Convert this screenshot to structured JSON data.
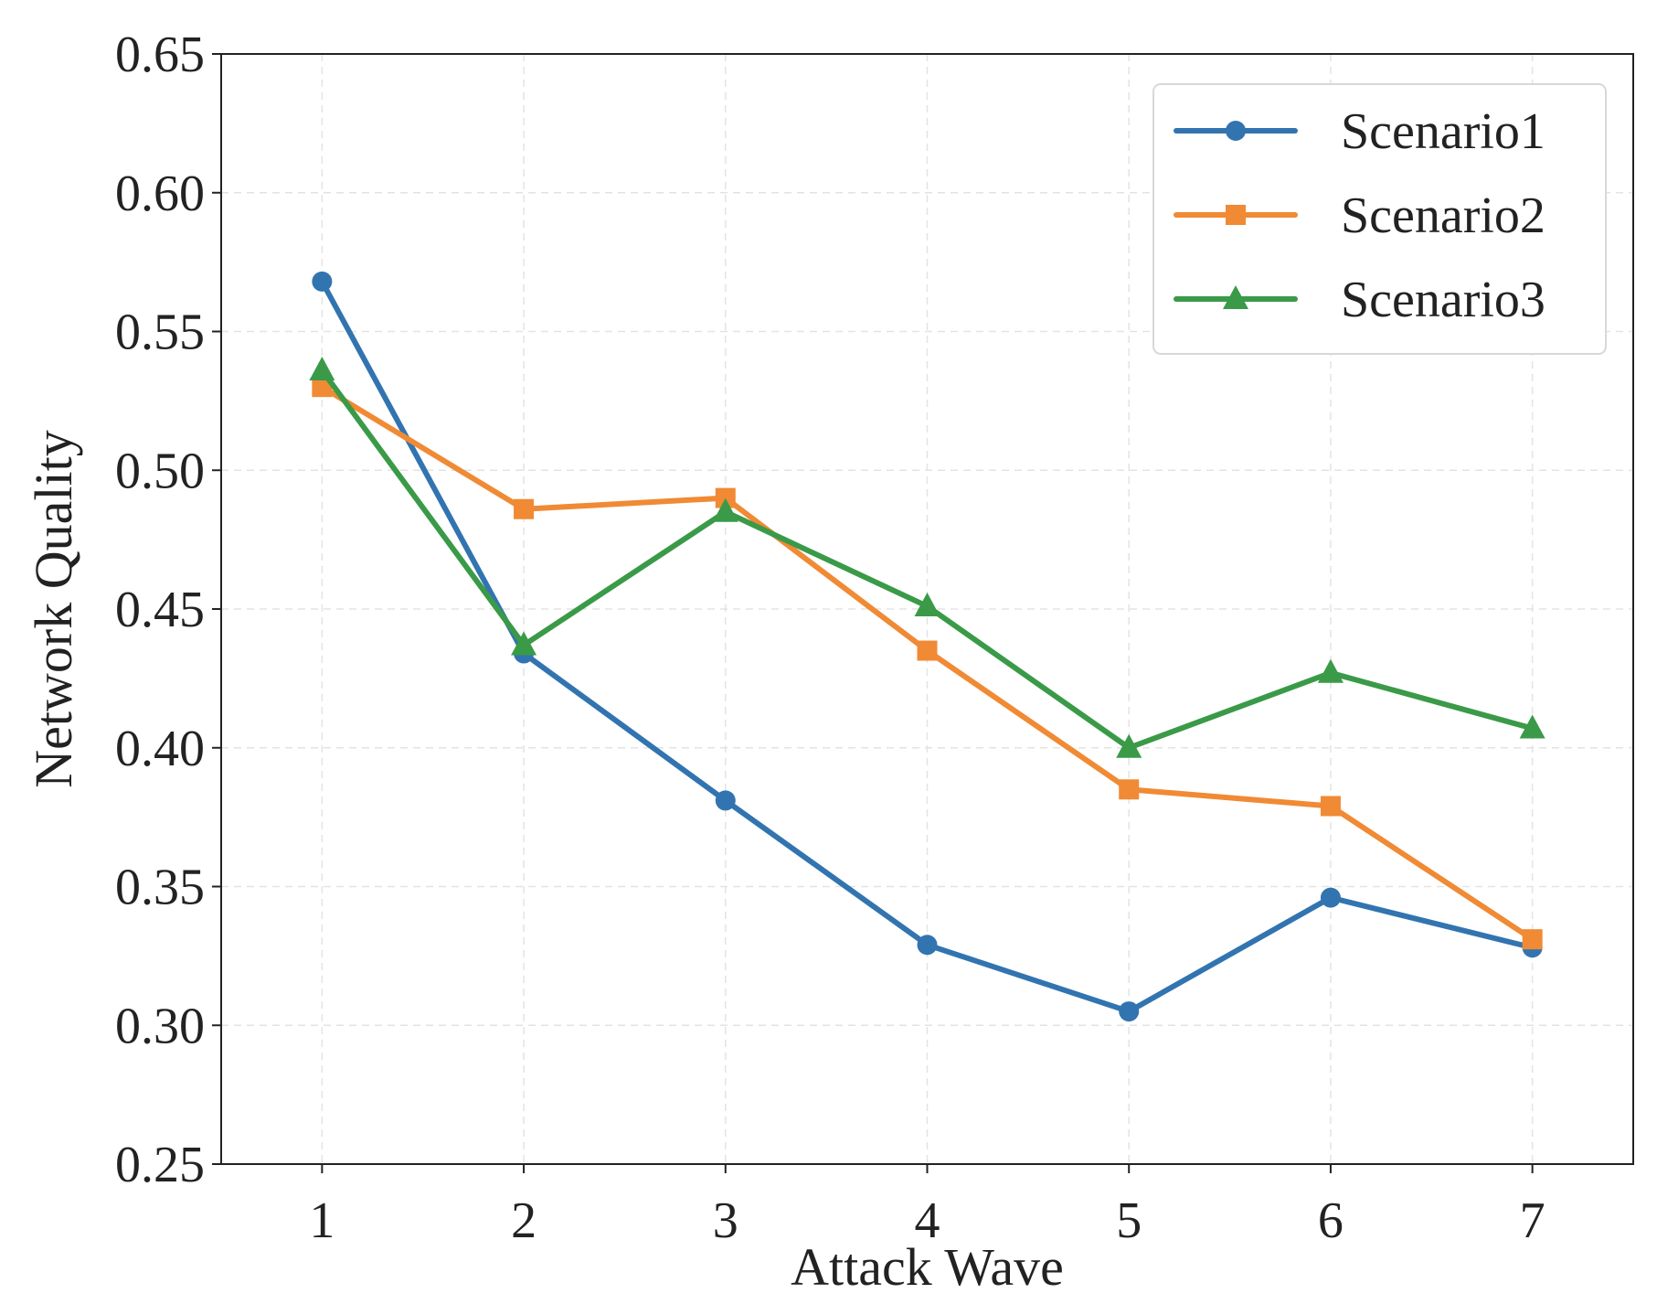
{
  "chart_data": {
    "type": "line",
    "title": "",
    "xlabel": "Attack Wave",
    "ylabel": "Network Quality",
    "x": [
      1,
      2,
      3,
      4,
      5,
      6,
      7
    ],
    "xlim": [
      0.5,
      7.5
    ],
    "ylim": [
      0.25,
      0.65
    ],
    "xticks": [
      1,
      2,
      3,
      4,
      5,
      6,
      7
    ],
    "yticks": [
      0.25,
      0.3,
      0.35,
      0.4,
      0.45,
      0.5,
      0.55,
      0.6,
      0.65
    ],
    "grid": true,
    "legend_position": "top-right",
    "series": [
      {
        "name": "Scenario1",
        "color": "#3274b0",
        "marker": "circle",
        "values": [
          0.568,
          0.434,
          0.381,
          0.329,
          0.305,
          0.346,
          0.328
        ]
      },
      {
        "name": "Scenario2",
        "color": "#f08a34",
        "marker": "square",
        "values": [
          0.53,
          0.486,
          0.49,
          0.435,
          0.385,
          0.379,
          0.331
        ]
      },
      {
        "name": "Scenario3",
        "color": "#3a9a48",
        "marker": "triangle",
        "values": [
          0.536,
          0.437,
          0.485,
          0.451,
          0.4,
          0.427,
          0.407
        ]
      }
    ]
  }
}
